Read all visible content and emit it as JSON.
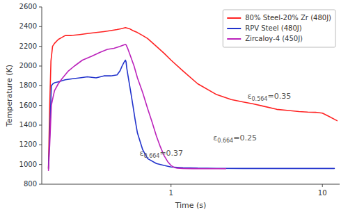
{
  "chart_data": {
    "type": "line",
    "xlabel": "Time (s)",
    "ylabel": "Temperature (K)",
    "log": "x",
    "grid": false,
    "legend": "upper right",
    "xlim": [
      0.14,
      13
    ],
    "ylim": [
      800,
      2600
    ],
    "xticks": [
      1,
      10
    ],
    "yticks": [
      800,
      1000,
      1200,
      1400,
      1600,
      1800,
      2000,
      2200,
      2400,
      2600
    ],
    "series": [
      {
        "name": "80% Steel-20% Zr (480J)",
        "color": "#ff2222",
        "x": [
          0.155,
          0.158,
          0.161,
          0.165,
          0.17,
          0.18,
          0.19,
          0.2,
          0.22,
          0.25,
          0.28,
          0.32,
          0.36,
          0.4,
          0.44,
          0.47,
          0.5,
          0.53,
          0.56,
          0.6,
          0.65,
          0.7,
          0.8,
          0.9,
          1.0,
          1.2,
          1.5,
          2.0,
          2.5,
          3.0,
          3.5,
          4.0,
          5.0,
          6.0,
          7.0,
          8.0,
          9.0,
          10.0,
          11.0,
          12.5
        ],
        "values": [
          960,
          1600,
          2050,
          2200,
          2230,
          2270,
          2290,
          2310,
          2310,
          2320,
          2330,
          2340,
          2350,
          2360,
          2370,
          2380,
          2390,
          2380,
          2360,
          2340,
          2310,
          2280,
          2200,
          2130,
          2060,
          1950,
          1820,
          1710,
          1660,
          1635,
          1615,
          1595,
          1560,
          1548,
          1538,
          1532,
          1530,
          1522,
          1490,
          1445
        ]
      },
      {
        "name": "RPV Steel (480J)",
        "color": "#2233cc",
        "x": [
          0.155,
          0.158,
          0.162,
          0.166,
          0.17,
          0.18,
          0.19,
          0.2,
          0.22,
          0.25,
          0.28,
          0.32,
          0.36,
          0.4,
          0.44,
          0.46,
          0.475,
          0.49,
          0.5,
          0.505,
          0.51,
          0.52,
          0.54,
          0.56,
          0.58,
          0.6,
          0.65,
          0.7,
          0.8,
          0.9,
          1.0,
          1.2,
          1.5,
          2.0,
          3.0,
          5.0,
          8.0,
          12.0
        ],
        "values": [
          960,
          1300,
          1800,
          1820,
          1830,
          1840,
          1850,
          1860,
          1870,
          1880,
          1890,
          1880,
          1900,
          1900,
          1910,
          1950,
          2000,
          2040,
          2060,
          2040,
          1980,
          1900,
          1750,
          1600,
          1450,
          1320,
          1150,
          1060,
          1010,
          990,
          975,
          968,
          963,
          961,
          960,
          960,
          960,
          960
        ]
      },
      {
        "name": "Zircaloy-4 (450J)",
        "color": "#bb22bb",
        "x": [
          0.155,
          0.158,
          0.162,
          0.166,
          0.17,
          0.18,
          0.19,
          0.21,
          0.23,
          0.26,
          0.3,
          0.34,
          0.38,
          0.42,
          0.46,
          0.49,
          0.5,
          0.505,
          0.51,
          0.52,
          0.54,
          0.57,
          0.6,
          0.65,
          0.7,
          0.75,
          0.8,
          0.85,
          0.9,
          0.95,
          1.0,
          1.05,
          1.1,
          1.2,
          1.4,
          1.6,
          1.8,
          2.0,
          2.3
        ],
        "values": [
          940,
          1200,
          1600,
          1680,
          1750,
          1820,
          1870,
          1950,
          2000,
          2060,
          2100,
          2140,
          2170,
          2180,
          2200,
          2215,
          2220,
          2215,
          2200,
          2170,
          2100,
          2000,
          1880,
          1730,
          1570,
          1430,
          1290,
          1180,
          1090,
          1030,
          990,
          970,
          963,
          960,
          958,
          957,
          957,
          957,
          957
        ]
      }
    ],
    "annotations": [
      {
        "text": "ε0.564=0.35",
        "x": 3.2,
        "y": 1665
      },
      {
        "text": "ε0.664=0.25",
        "x": 1.9,
        "y": 1245
      },
      {
        "text": "ε0.664=0.37",
        "x": 0.62,
        "y": 1088
      }
    ]
  }
}
